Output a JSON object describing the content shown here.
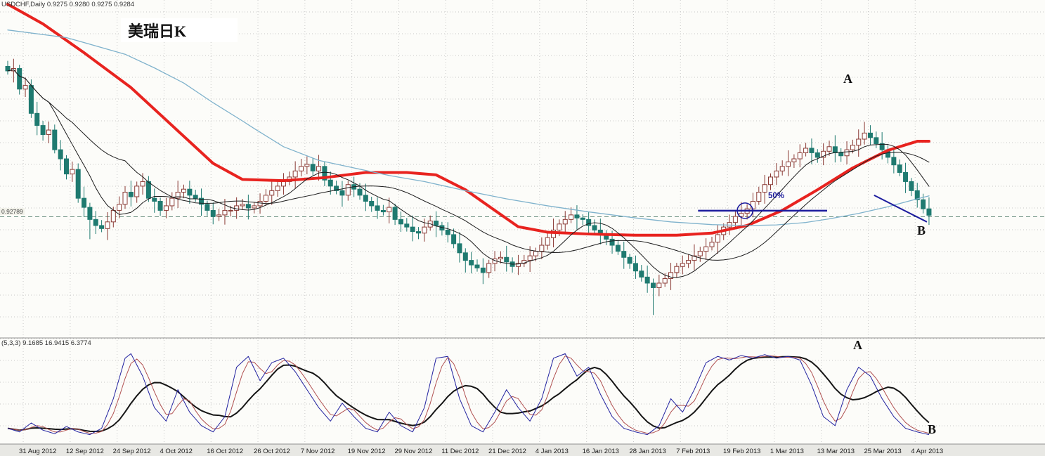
{
  "window": {
    "app": "trading-terminal-chart"
  },
  "chart_data": [
    {
      "type": "candlestick",
      "symbol": "USDCHF",
      "timeframe": "Daily",
      "ohlc_title": "USDCHF,Daily  0.9275 0.9280 0.9275 0.9284",
      "ohlc_display": {
        "open": 0.9275,
        "high": 0.928,
        "low": 0.9275,
        "close": 0.9284
      },
      "current_price": 0.92789,
      "ylim": [
        0.89,
        0.998
      ],
      "grid": true,
      "x_tick_labels": [
        "31 Aug 2012",
        "12 Sep 2012",
        "24 Sep 2012",
        "4 Oct 2012",
        "16 Oct 2012",
        "26 Oct 2012",
        "7 Nov 2012",
        "19 Nov 2012",
        "29 Nov 2012",
        "11 Dec 2012",
        "21 Dec 2012",
        "4 Jan 2013",
        "16 Jan 2013",
        "28 Jan 2013",
        "7 Feb 2013",
        "19 Feb 2013",
        "1 Mar 2013",
        "13 Mar 2013",
        "25 Mar 2013",
        "4 Apr 2013"
      ],
      "x_tick_bars": [
        3,
        11,
        19,
        27,
        35,
        43,
        51,
        59,
        67,
        75,
        83,
        91,
        99,
        107,
        115,
        123,
        131,
        139,
        147,
        155
      ],
      "first_open": 0.9775,
      "closes": [
        0.976,
        0.9768,
        0.97,
        0.9712,
        0.962,
        0.958,
        0.955,
        0.9565,
        0.95,
        0.947,
        0.942,
        0.9435,
        0.934,
        0.931,
        0.927,
        0.925,
        0.924,
        0.9262,
        0.93,
        0.932,
        0.936,
        0.9345,
        0.938,
        0.9395,
        0.934,
        0.933,
        0.93,
        0.9315,
        0.934,
        0.936,
        0.937,
        0.935,
        0.934,
        0.932,
        0.93,
        0.928,
        0.9285,
        0.93,
        0.93,
        0.9315,
        0.932,
        0.9308,
        0.9315,
        0.933,
        0.935,
        0.9365,
        0.938,
        0.9395,
        0.941,
        0.943,
        0.9445,
        0.9452,
        0.943,
        0.9445,
        0.94,
        0.938,
        0.9365,
        0.935,
        0.9385,
        0.937,
        0.935,
        0.933,
        0.9315,
        0.93,
        0.9295,
        0.931,
        0.927,
        0.9255,
        0.9245,
        0.923,
        0.9225,
        0.9245,
        0.9265,
        0.925,
        0.9235,
        0.922,
        0.919,
        0.916,
        0.9135,
        0.912,
        0.911,
        0.9095,
        0.9125,
        0.914,
        0.9145,
        0.913,
        0.9115,
        0.9125,
        0.9135,
        0.915,
        0.9165,
        0.9185,
        0.921,
        0.9235,
        0.9255,
        0.927,
        0.9285,
        0.9275,
        0.927,
        0.925,
        0.9235,
        0.922,
        0.9205,
        0.9185,
        0.9165,
        0.9145,
        0.9125,
        0.91,
        0.908,
        0.906,
        0.9045,
        0.906,
        0.9075,
        0.9095,
        0.9115,
        0.9125,
        0.9135,
        0.915,
        0.9165,
        0.918,
        0.9195,
        0.922,
        0.9245,
        0.926,
        0.928,
        0.929,
        0.9305,
        0.933,
        0.936,
        0.9385,
        0.941,
        0.943,
        0.9445,
        0.946,
        0.947,
        0.949,
        0.9505,
        0.949,
        0.9475,
        0.9495,
        0.951,
        0.949,
        0.948,
        0.95,
        0.9515,
        0.9535,
        0.9555,
        0.954,
        0.952,
        0.95,
        0.9475,
        0.945,
        0.9425,
        0.9395,
        0.9365,
        0.9335,
        0.9305,
        0.9284
      ],
      "wick_pattern": [
        0.0018,
        0.0032,
        0.0012,
        0.0026,
        0.002,
        0.0038,
        0.0015,
        0.0028
      ],
      "special_wicks": {
        "14": {
          "low": 0.9205
        },
        "50": {
          "high": 0.947
        },
        "78": {
          "low": 0.9095
        },
        "96": {
          "high": 0.931
        },
        "110": {
          "low": 0.8955
        },
        "146": {
          "high": 0.9592
        }
      },
      "colors": {
        "bull_fill": "#ffffff",
        "bull_stroke": "#8a3a34",
        "bear": "#1f7a70",
        "price_line": "#6b9080"
      },
      "overlays": [
        {
          "name": "ma-red-slow",
          "color": "#e8231f",
          "width": 4,
          "points": [
            [
              0,
              0.998
            ],
            [
              6,
              0.9915
            ],
            [
              13,
              0.982
            ],
            [
              21,
              0.9705
            ],
            [
              28,
              0.958
            ],
            [
              35,
              0.9455
            ],
            [
              40,
              0.9402
            ],
            [
              47,
              0.9398
            ],
            [
              54,
              0.9408
            ],
            [
              61,
              0.9425
            ],
            [
              68,
              0.9425
            ],
            [
              73,
              0.9417
            ],
            [
              78,
              0.9368
            ],
            [
              83,
              0.93
            ],
            [
              87,
              0.9246
            ],
            [
              92,
              0.9228
            ],
            [
              99,
              0.9222
            ],
            [
              107,
              0.9218
            ],
            [
              114,
              0.9218
            ],
            [
              120,
              0.9225
            ],
            [
              126,
              0.925
            ],
            [
              132,
              0.93
            ],
            [
              138,
              0.9368
            ],
            [
              144,
              0.944
            ],
            [
              150,
              0.9498
            ],
            [
              155,
              0.9528
            ],
            [
              157,
              0.9528
            ]
          ]
        },
        {
          "name": "ma-lightblue-slow",
          "color": "#7fb2cc",
          "width": 1.3,
          "points": [
            [
              0,
              0.9895
            ],
            [
              10,
              0.987
            ],
            [
              20,
              0.9815
            ],
            [
              25,
              0.977
            ],
            [
              30,
              0.972
            ],
            [
              35,
              0.9655
            ],
            [
              40,
              0.9595
            ],
            [
              42,
              0.957
            ],
            [
              47,
              0.951
            ],
            [
              53,
              0.9465
            ],
            [
              59,
              0.944
            ],
            [
              65,
              0.9415
            ],
            [
              71,
              0.9395
            ],
            [
              78,
              0.9365
            ],
            [
              85,
              0.9338
            ],
            [
              92,
              0.9315
            ],
            [
              99,
              0.9295
            ],
            [
              107,
              0.9275
            ],
            [
              113,
              0.9262
            ],
            [
              120,
              0.9253
            ],
            [
              126,
              0.925
            ],
            [
              131,
              0.9252
            ],
            [
              136,
              0.926
            ],
            [
              140,
              0.9272
            ],
            [
              145,
              0.929
            ],
            [
              150,
              0.9312
            ],
            [
              155,
              0.9338
            ],
            [
              157,
              0.9348
            ]
          ]
        },
        {
          "name": "ma-black-fast",
          "color": "#1c1c1c",
          "width": 1,
          "sma_period": 8
        },
        {
          "name": "ma-black-mid",
          "color": "#1c1c1c",
          "width": 1,
          "sma_period": 21
        }
      ],
      "annotations": {
        "title_box": "美瑞日K",
        "label_a": "A",
        "label_b": "B",
        "fib_label": "50%",
        "price_tag": "0.92789",
        "annotation_color": "#1c1c9e",
        "fib_line": {
          "from_bar": 118,
          "to_bar": 140,
          "price": 0.9299
        },
        "fib_circle": {
          "bar": 126,
          "price": 0.9299,
          "r": 11
        },
        "trend_segment": {
          "from": [
            148,
            0.935
          ],
          "to": [
            157,
            0.9262
          ]
        }
      }
    },
    {
      "type": "line",
      "name": "stochastic-oscillator",
      "label": "(5,3,3)  9.1685 16.9415 6.3774",
      "ylim": [
        0,
        100
      ],
      "signal_sma": 3,
      "slow_sma": 9,
      "colors": {
        "main": "#2222a0",
        "signal": "#b05050",
        "slow": "#151515"
      },
      "labels": {
        "a": "A",
        "b": "B"
      },
      "main_points": [
        [
          0,
          12
        ],
        [
          2,
          8
        ],
        [
          4,
          18
        ],
        [
          6,
          10
        ],
        [
          8,
          6
        ],
        [
          10,
          14
        ],
        [
          12,
          8
        ],
        [
          14,
          5
        ],
        [
          16,
          12
        ],
        [
          18,
          45
        ],
        [
          20,
          90
        ],
        [
          21,
          95
        ],
        [
          23,
          70
        ],
        [
          25,
          35
        ],
        [
          27,
          20
        ],
        [
          29,
          55
        ],
        [
          31,
          30
        ],
        [
          33,
          15
        ],
        [
          35,
          8
        ],
        [
          37,
          25
        ],
        [
          39,
          80
        ],
        [
          41,
          92
        ],
        [
          43,
          65
        ],
        [
          45,
          85
        ],
        [
          47,
          90
        ],
        [
          49,
          75
        ],
        [
          51,
          55
        ],
        [
          53,
          35
        ],
        [
          55,
          20
        ],
        [
          57,
          40
        ],
        [
          59,
          25
        ],
        [
          61,
          12
        ],
        [
          63,
          8
        ],
        [
          65,
          30
        ],
        [
          67,
          15
        ],
        [
          69,
          8
        ],
        [
          71,
          35
        ],
        [
          73,
          90
        ],
        [
          75,
          92
        ],
        [
          77,
          45
        ],
        [
          79,
          15
        ],
        [
          81,
          8
        ],
        [
          83,
          30
        ],
        [
          85,
          55
        ],
        [
          87,
          35
        ],
        [
          89,
          20
        ],
        [
          91,
          45
        ],
        [
          93,
          90
        ],
        [
          95,
          95
        ],
        [
          97,
          70
        ],
        [
          99,
          80
        ],
        [
          101,
          50
        ],
        [
          103,
          25
        ],
        [
          105,
          12
        ],
        [
          107,
          8
        ],
        [
          109,
          5
        ],
        [
          111,
          15
        ],
        [
          113,
          45
        ],
        [
          115,
          30
        ],
        [
          117,
          55
        ],
        [
          119,
          85
        ],
        [
          121,
          92
        ],
        [
          123,
          88
        ],
        [
          125,
          93
        ],
        [
          127,
          90
        ],
        [
          129,
          94
        ],
        [
          131,
          90
        ],
        [
          133,
          92
        ],
        [
          135,
          88
        ],
        [
          137,
          60
        ],
        [
          139,
          25
        ],
        [
          141,
          15
        ],
        [
          143,
          55
        ],
        [
          145,
          80
        ],
        [
          147,
          70
        ],
        [
          149,
          45
        ],
        [
          151,
          25
        ],
        [
          153,
          12
        ],
        [
          155,
          8
        ],
        [
          157,
          5
        ]
      ]
    }
  ]
}
